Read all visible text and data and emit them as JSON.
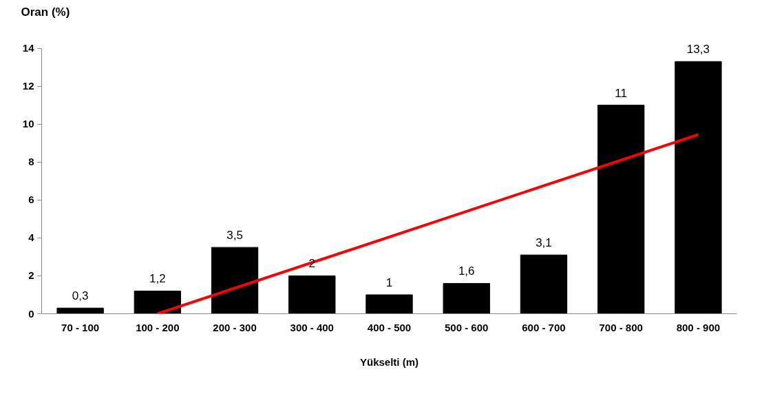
{
  "chart_data": {
    "type": "bar",
    "xlabel": "Yükselti (m)",
    "ylabel": "Oran (%)",
    "categories": [
      "70 - 100",
      "100 - 200",
      "200 - 300",
      "300 - 400",
      "400 - 500",
      "500 - 600",
      "600 - 700",
      "700 - 800",
      "800 - 900"
    ],
    "series": [
      {
        "color": "#000000",
        "values": [
          0.3,
          1.2,
          3.5,
          2,
          1,
          1.6,
          3.1,
          11,
          13.3
        ],
        "value_labels": [
          "0,3",
          "1,2",
          "3,5",
          "2",
          "1",
          "1,6",
          "3,1",
          "11",
          "13,3"
        ]
      },
      {
        "type": "line",
        "color": "#ff0000",
        "x": [
          "100 - 200",
          "800 - 900"
        ],
        "values": [
          0,
          9.45
        ]
      }
    ],
    "ylim": [
      0,
      14
    ],
    "yticks": [
      0,
      2,
      4,
      6,
      8,
      10,
      12,
      14
    ],
    "grid": false
  }
}
